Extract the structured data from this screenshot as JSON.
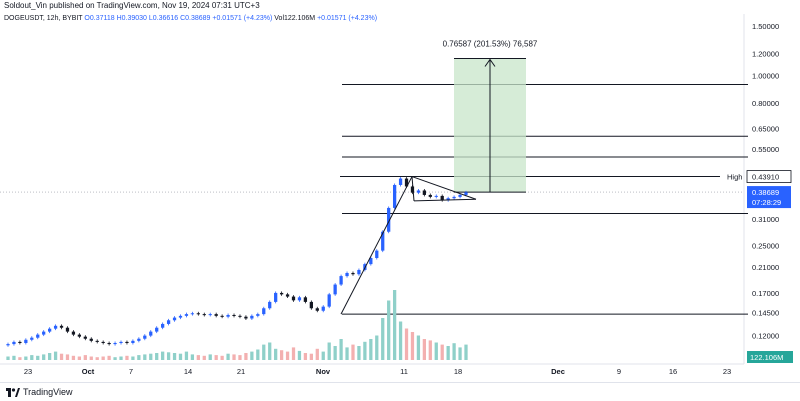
{
  "header": {
    "published_line": "Soldout_Vin published on TradingView.com, Nov 19, 2024 07:31 UTC+3"
  },
  "legend": {
    "symbol": "DOGEUSDT, 12h, BYBIT",
    "open": "O0.37118",
    "high": "H0.39030",
    "low": "L0.36616",
    "close": "C0.38689",
    "change": "+0.01571 (+4.23%)",
    "volume": "Vol122.106M",
    "vol_change": "+0.01571 (+4.23%)"
  },
  "price_axis": {
    "ticks": [
      "1.50000",
      "1.20000",
      "1.00000",
      "0.80000",
      "0.65000",
      "0.55000",
      "0.43910",
      "0.31000",
      "0.25000",
      "0.21000",
      "0.17000",
      "0.14500",
      "0.12000"
    ]
  },
  "time_axis": {
    "ticks": [
      "23",
      "Oct",
      "7",
      "14",
      "21",
      "Nov",
      "11",
      "18",
      "Dec",
      "9",
      "16",
      "23"
    ]
  },
  "badges": {
    "high_label": "High",
    "high_value": "0.43910",
    "price_value": "0.38689",
    "countdown": "07:28:29",
    "volume_value": "122.106M"
  },
  "projection": {
    "label": "0.76587 (201.53%) 76,587"
  },
  "footer": {
    "brand": "TradingView"
  },
  "colors": {
    "up": "#2962ff",
    "down": "#131722",
    "vol_up": "#8fd0c9",
    "vol_down": "#f3b0b0",
    "target_zone": "#c8e6c9",
    "price_badge": "#2962ff",
    "volume_badge": "#26a69a"
  },
  "chart_data": {
    "type": "candlestick",
    "symbol": "DOGEUSDT",
    "timeframe": "12h",
    "exchange": "BYBIT",
    "scale": "log",
    "ylim": [
      0.105,
      1.6
    ],
    "horizontal_levels": [
      0.93,
      0.61,
      0.515,
      0.4391,
      0.325,
      0.143
    ],
    "target_zone": [
      0.38689,
      1.15
    ],
    "ohlc_summary": {
      "open": 0.37118,
      "high": 0.3903,
      "low": 0.36616,
      "close": 0.38689
    },
    "price_path": [
      0.112,
      0.114,
      0.113,
      0.116,
      0.118,
      0.121,
      0.124,
      0.127,
      0.13,
      0.128,
      0.124,
      0.121,
      0.119,
      0.117,
      0.115,
      0.114,
      0.113,
      0.112,
      0.113,
      0.114,
      0.113,
      0.115,
      0.117,
      0.12,
      0.124,
      0.128,
      0.132,
      0.136,
      0.139,
      0.141,
      0.143,
      0.144,
      0.143,
      0.142,
      0.143,
      0.141,
      0.14,
      0.142,
      0.141,
      0.14,
      0.138,
      0.141,
      0.143,
      0.15,
      0.158,
      0.17,
      0.168,
      0.165,
      0.16,
      0.164,
      0.158,
      0.15,
      0.147,
      0.152,
      0.168,
      0.182,
      0.195,
      0.2,
      0.198,
      0.205,
      0.215,
      0.226,
      0.24,
      0.28,
      0.34,
      0.41,
      0.432,
      0.405,
      0.385,
      0.392,
      0.378,
      0.372,
      0.375,
      0.362,
      0.368,
      0.372,
      0.378,
      0.386
    ],
    "volume_path": [
      0.05,
      0.06,
      0.04,
      0.05,
      0.07,
      0.06,
      0.08,
      0.1,
      0.12,
      0.09,
      0.08,
      0.06,
      0.05,
      0.07,
      0.05,
      0.04,
      0.05,
      0.06,
      0.04,
      0.05,
      0.06,
      0.05,
      0.07,
      0.08,
      0.09,
      0.1,
      0.12,
      0.11,
      0.1,
      0.09,
      0.12,
      0.08,
      0.07,
      0.06,
      0.08,
      0.07,
      0.06,
      0.09,
      0.08,
      0.07,
      0.1,
      0.12,
      0.15,
      0.22,
      0.25,
      0.16,
      0.14,
      0.12,
      0.18,
      0.13,
      0.1,
      0.09,
      0.16,
      0.12,
      0.25,
      0.2,
      0.3,
      0.18,
      0.22,
      0.2,
      0.26,
      0.3,
      0.35,
      0.6,
      0.85,
      1.0,
      0.55,
      0.45,
      0.4,
      0.35,
      0.3,
      0.28,
      0.25,
      0.22,
      0.2,
      0.24,
      0.18,
      0.22
    ]
  }
}
